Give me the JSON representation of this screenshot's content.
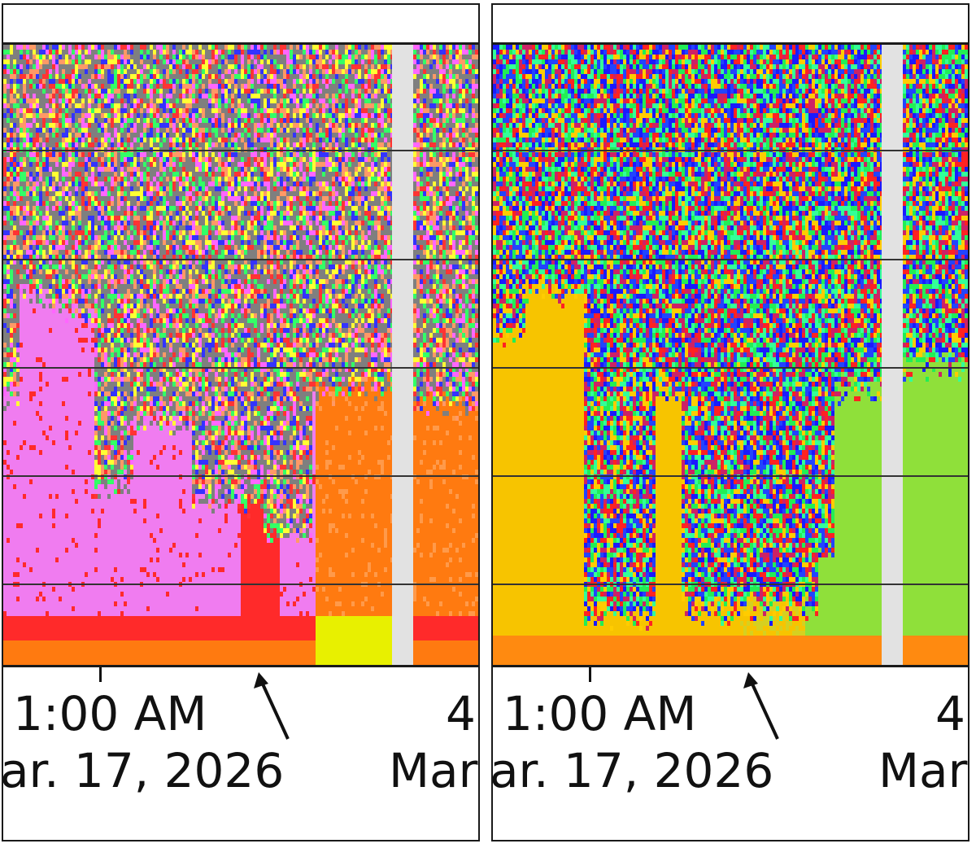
{
  "chart_data": [
    {
      "type": "heatmap",
      "panel": "left",
      "x_tick_labels": [
        {
          "time": "1:00 AM",
          "date": "ar. 17, 2026"
        },
        {
          "time": "4:",
          "date": "Mar."
        }
      ],
      "gridlines_horizontal": 5,
      "grid": true,
      "gap": "data gap (gray vertical band) near right side",
      "annotation": "arrow pointing to x-axis"
    },
    {
      "type": "heatmap",
      "panel": "right",
      "x_tick_labels": [
        {
          "time": "1:00 AM",
          "date": "ar. 17, 2026"
        },
        {
          "time": "4:",
          "date": "Mar."
        }
      ],
      "gridlines_horizontal": 5,
      "grid": true,
      "gap": "data gap (gray vertical band) near right side",
      "annotation": "arrow pointing to x-axis"
    }
  ],
  "colors": {
    "left_noise": [
      "#7f7f7f",
      "#7f7f7f",
      "#7f7f7f",
      "#ff66ff",
      "#ffff33",
      "#33ff66",
      "#ff3333",
      "#3333ff",
      "#ff9966"
    ],
    "left_signal_pink": "#f07cf0",
    "left_signal_red": "#ff2a2a",
    "left_signal_orange": "#ff7a10",
    "left_signal_yellow": "#e8f000",
    "right_noise": [
      "#ff2222",
      "#1a1aff",
      "#22ee55",
      "#ffcc00",
      "#33ff99",
      "#cc2266",
      "#2244ff"
    ],
    "right_signal_yellow": "#f7c400",
    "right_signal_green": "#8fe03a",
    "right_signal_orange": "#ff8a10",
    "gap_gray": "#e2e2e2",
    "gridline": "#333333"
  }
}
